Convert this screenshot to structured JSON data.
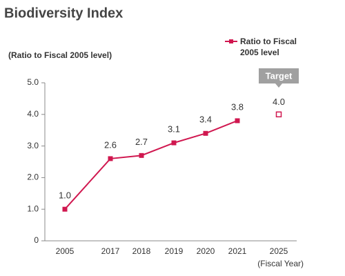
{
  "chart_data": {
    "type": "line",
    "title": "Biodiversity Index",
    "y_label": "(Ratio to Fiscal 2005 level)",
    "x_label": "(Fiscal Year)",
    "categories": [
      "2005",
      "2017",
      "2018",
      "2019",
      "2020",
      "2021",
      "2025"
    ],
    "series": [
      {
        "name": "Ratio to Fiscal 2005 level",
        "color": "#d0174f",
        "values": [
          1.0,
          2.6,
          2.7,
          3.1,
          3.4,
          3.8,
          null
        ],
        "value_labels": [
          "1.0",
          "2.6",
          "2.7",
          "3.1",
          "3.4",
          "3.8",
          null
        ]
      }
    ],
    "target": {
      "label": "Target",
      "value": 4.0,
      "value_label": "4.0"
    },
    "ylim": [
      0,
      5
    ],
    "yticks": [
      0,
      {
        "value": 1,
        "label": "1.0"
      },
      {
        "value": 2,
        "label": "2.0"
      },
      {
        "value": 3,
        "label": "3.0"
      },
      {
        "value": 4,
        "label": "4.0"
      },
      {
        "value": 5,
        "label": "5.0"
      }
    ]
  }
}
